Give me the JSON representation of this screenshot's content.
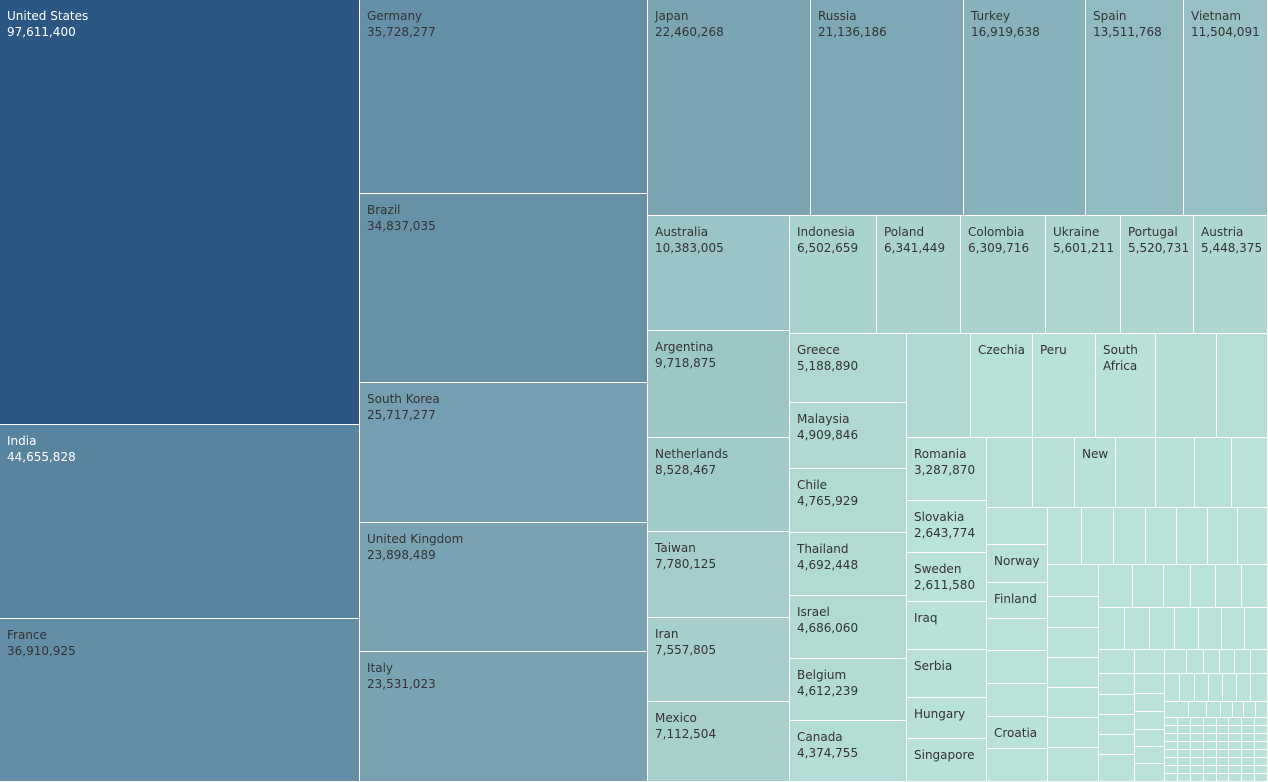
{
  "chart_data": {
    "type": "treemap",
    "title": "",
    "color_scale": {
      "low": "#b9e2d8",
      "high": "#2c5784"
    },
    "items": [
      {
        "label": "United States",
        "value": 97611400,
        "value_text": "97,611,400"
      },
      {
        "label": "India",
        "value": 44655828,
        "value_text": "44,655,828"
      },
      {
        "label": "France",
        "value": 36910925,
        "value_text": "36,910,925"
      },
      {
        "label": "Germany",
        "value": 35728277,
        "value_text": "35,728,277"
      },
      {
        "label": "Brazil",
        "value": 34837035,
        "value_text": "34,837,035"
      },
      {
        "label": "South Korea",
        "value": 25717277,
        "value_text": "25,717,277"
      },
      {
        "label": "United Kingdom",
        "value": 23898489,
        "value_text": "23,898,489"
      },
      {
        "label": "Italy",
        "value": 23531023,
        "value_text": "23,531,023"
      },
      {
        "label": "Japan",
        "value": 22460268,
        "value_text": "22,460,268"
      },
      {
        "label": "Russia",
        "value": 21136186,
        "value_text": "21,136,186"
      },
      {
        "label": "Turkey",
        "value": 16919638,
        "value_text": "16,919,638"
      },
      {
        "label": "Spain",
        "value": 13511768,
        "value_text": "13,511,768"
      },
      {
        "label": "Vietnam",
        "value": 11504091,
        "value_text": "11,504,091"
      },
      {
        "label": "Australia",
        "value": 10383005,
        "value_text": "10,383,005"
      },
      {
        "label": "Argentina",
        "value": 9718875,
        "value_text": "9,718,875"
      },
      {
        "label": "Netherlands",
        "value": 8528467,
        "value_text": "8,528,467"
      },
      {
        "label": "Taiwan",
        "value": 7780125,
        "value_text": "7,780,125"
      },
      {
        "label": "Iran",
        "value": 7557805,
        "value_text": "7,557,805"
      },
      {
        "label": "Mexico",
        "value": 7112504,
        "value_text": "7,112,504"
      },
      {
        "label": "Indonesia",
        "value": 6502659,
        "value_text": "6,502,659"
      },
      {
        "label": "Poland",
        "value": 6341449,
        "value_text": "6,341,449"
      },
      {
        "label": "Colombia",
        "value": 6309716,
        "value_text": "6,309,716"
      },
      {
        "label": "Ukraine",
        "value": 5601211,
        "value_text": "5,601,211"
      },
      {
        "label": "Portugal",
        "value": 5520731,
        "value_text": "5,520,731"
      },
      {
        "label": "Austria",
        "value": 5448375,
        "value_text": "5,448,375"
      },
      {
        "label": "Greece",
        "value": 5188890,
        "value_text": "5,188,890"
      },
      {
        "label": "Malaysia",
        "value": 4909846,
        "value_text": "4,909,846"
      },
      {
        "label": "Chile",
        "value": 4765929,
        "value_text": "4,765,929"
      },
      {
        "label": "Thailand",
        "value": 4692448,
        "value_text": "4,692,448"
      },
      {
        "label": "Israel",
        "value": 4686060,
        "value_text": "4,686,060"
      },
      {
        "label": "Belgium",
        "value": 4612239,
        "value_text": "4,612,239"
      },
      {
        "label": "Canada",
        "value": 4374755,
        "value_text": "4,374,755"
      },
      {
        "label": "Czechia",
        "value": null,
        "value_text": ""
      },
      {
        "label": "Peru",
        "value": null,
        "value_text": ""
      },
      {
        "label": "South Africa",
        "value": null,
        "value_text": ""
      },
      {
        "label": "Romania",
        "value": 3287870,
        "value_text": "3,287,870"
      },
      {
        "label": "Slovakia",
        "value": 2643774,
        "value_text": "2,643,774"
      },
      {
        "label": "Sweden",
        "value": 2611580,
        "value_text": "2,611,580"
      },
      {
        "label": "Iraq",
        "value": null,
        "value_text": ""
      },
      {
        "label": "Serbia",
        "value": null,
        "value_text": ""
      },
      {
        "label": "Hungary",
        "value": null,
        "value_text": ""
      },
      {
        "label": "Singapore",
        "value": null,
        "value_text": ""
      },
      {
        "label": "Norway",
        "value": null,
        "value_text": ""
      },
      {
        "label": "Finland",
        "value": null,
        "value_text": ""
      },
      {
        "label": "Croatia",
        "value": null,
        "value_text": ""
      },
      {
        "label": "New",
        "value": null,
        "value_text": ""
      }
    ]
  }
}
